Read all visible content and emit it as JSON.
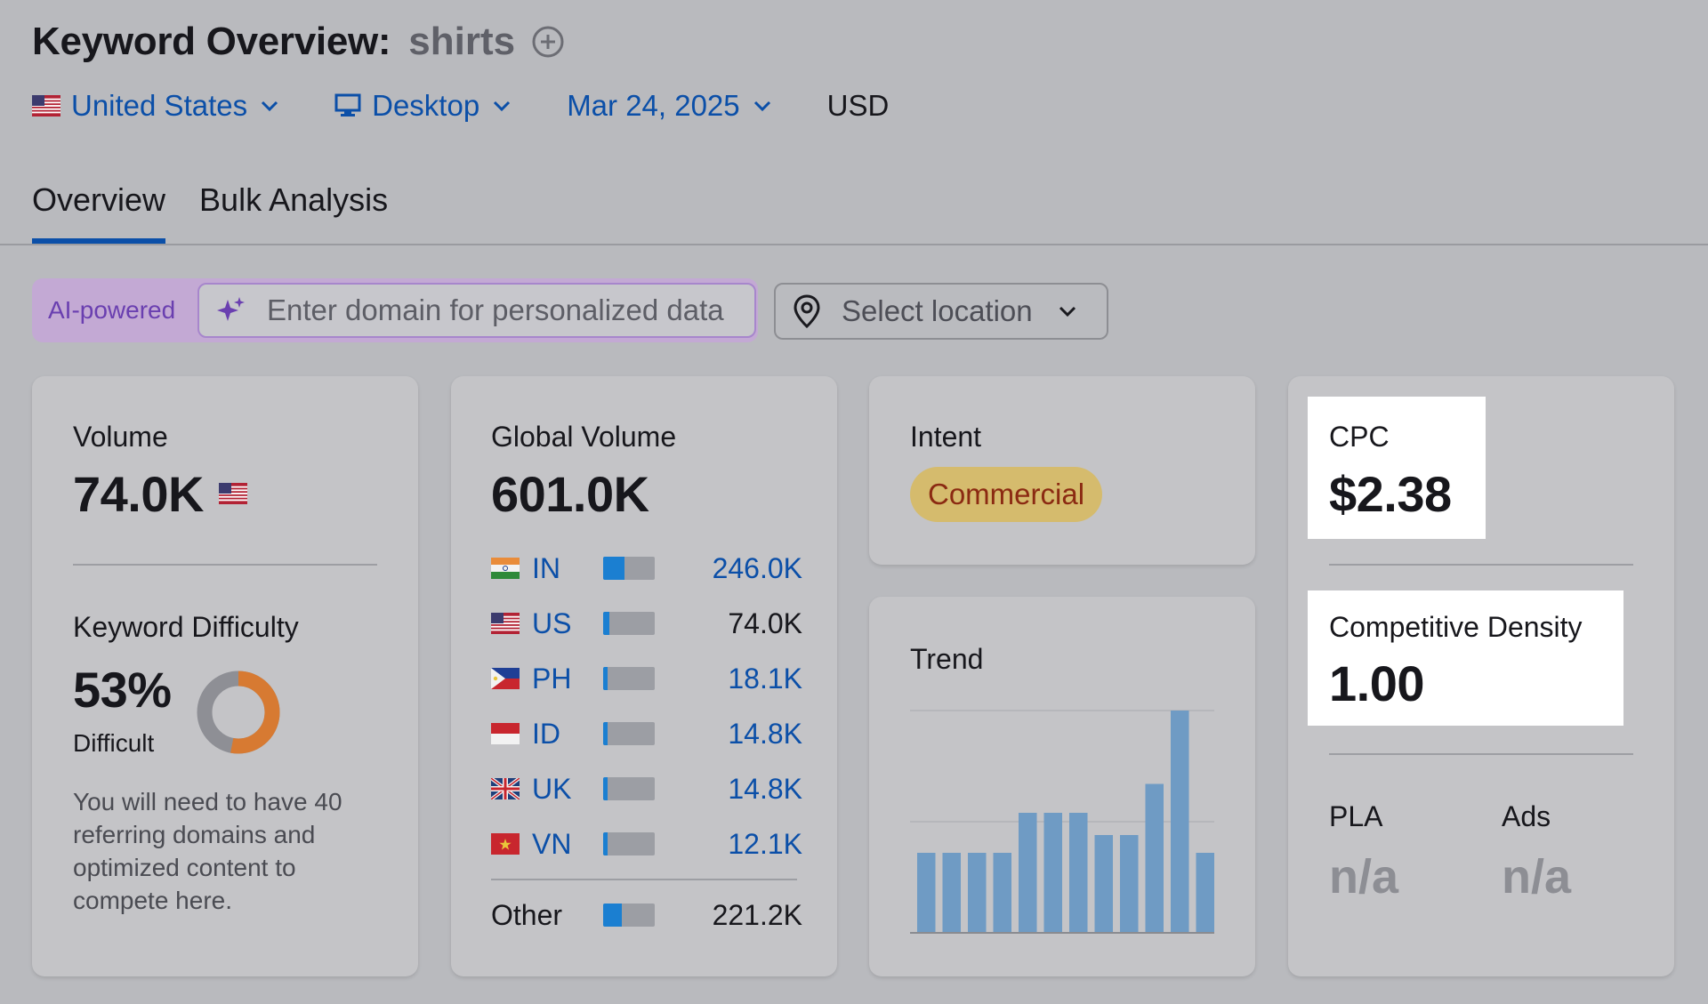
{
  "header": {
    "title": "Keyword Overview:",
    "keyword": "shirts",
    "filters": {
      "country": "United States",
      "device": "Desktop",
      "date": "Mar 24, 2025",
      "currency": "USD"
    }
  },
  "tabs": [
    {
      "label": "Overview",
      "active": true
    },
    {
      "label": "Bulk Analysis",
      "active": false
    }
  ],
  "search": {
    "ai_label": "AI-powered",
    "domain_placeholder": "Enter domain for personalized data",
    "location_placeholder": "Select location"
  },
  "volume": {
    "label": "Volume",
    "value": "74.0K",
    "kd_label": "Keyword Difficulty",
    "kd_value": "53%",
    "kd_percent": 53,
    "kd_level": "Difficult",
    "kd_description": "You will need to have 40 referring domains and optimized content to compete here."
  },
  "global_volume": {
    "label": "Global Volume",
    "value": "601.0K",
    "rows": [
      {
        "code": "IN",
        "value": "246.0K",
        "share": 0.41
      },
      {
        "code": "US",
        "value": "74.0K",
        "share": 0.12
      },
      {
        "code": "PH",
        "value": "18.1K",
        "share": 0.04
      },
      {
        "code": "ID",
        "value": "14.8K",
        "share": 0.03
      },
      {
        "code": "UK",
        "value": "14.8K",
        "share": 0.03
      },
      {
        "code": "VN",
        "value": "12.1K",
        "share": 0.03
      }
    ],
    "other_label": "Other",
    "other_value": "221.2K",
    "other_share": 0.37
  },
  "intent": {
    "label": "Intent",
    "value": "Commercial"
  },
  "trend": {
    "label": "Trend",
    "chart_data": {
      "type": "bar",
      "values": [
        0.36,
        0.36,
        0.36,
        0.36,
        0.54,
        0.54,
        0.54,
        0.44,
        0.44,
        0.67,
        1.0,
        0.36
      ],
      "ylim": [
        0,
        1
      ],
      "grid": true
    }
  },
  "cpc": {
    "label": "CPC",
    "value": "$2.38",
    "cd_label": "Competitive Density",
    "cd_value": "1.00",
    "pla_label": "PLA",
    "pla_value": "n/a",
    "ads_label": "Ads",
    "ads_value": "n/a"
  },
  "colors": {
    "link": "#0b4fa8",
    "bar_fill": "#1b7fd1",
    "trend_bar": "#6f9bc4",
    "kd_arc": "#d77a32",
    "intent_bg": "#d5bb6d",
    "intent_text": "#8b2a12"
  }
}
